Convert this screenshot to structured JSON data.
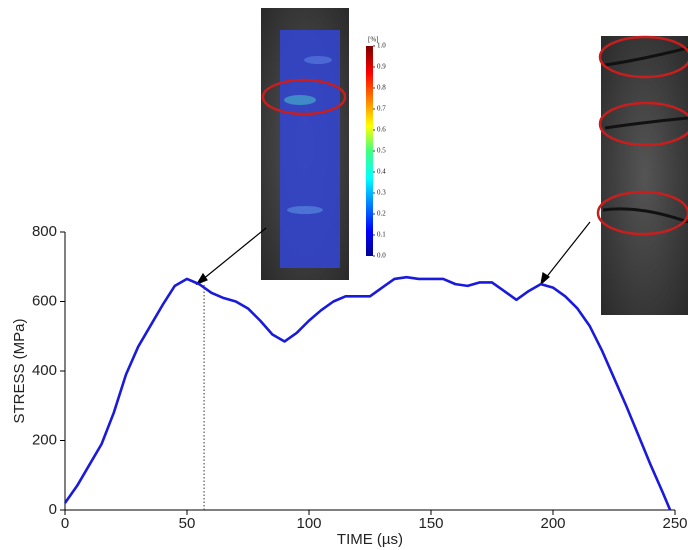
{
  "chart_data": {
    "type": "line",
    "x_label": "TIME (µs)",
    "y_label": "STRESS (MPa)",
    "x": [
      0,
      5,
      10,
      15,
      20,
      25,
      30,
      35,
      40,
      45,
      50,
      55,
      60,
      65,
      70,
      75,
      80,
      85,
      90,
      95,
      100,
      105,
      110,
      115,
      120,
      125,
      130,
      135,
      140,
      145,
      150,
      155,
      160,
      165,
      170,
      175,
      180,
      185,
      190,
      195,
      200,
      205,
      210,
      215,
      220,
      225,
      230,
      235,
      240,
      245,
      248
    ],
    "series": [
      {
        "name": "stress",
        "color": "#1a1adc",
        "values": [
          20,
          70,
          130,
          190,
          280,
          390,
          470,
          530,
          590,
          645,
          665,
          650,
          625,
          610,
          600,
          580,
          545,
          505,
          485,
          510,
          545,
          575,
          600,
          615,
          615,
          615,
          640,
          665,
          670,
          665,
          665,
          665,
          650,
          645,
          655,
          655,
          630,
          605,
          630,
          650,
          640,
          615,
          580,
          530,
          460,
          380,
          300,
          215,
          130,
          50,
          0
        ]
      }
    ],
    "xlim": [
      0,
      250
    ],
    "xticks": [
      0,
      50,
      100,
      150,
      200,
      250
    ],
    "ylim": [
      0,
      800
    ],
    "yticks": [
      0,
      200,
      400,
      600,
      800
    ],
    "vline_x": 57,
    "colorbar": {
      "label": "[%]",
      "ticks": [
        {
          "value": 0,
          "label": "0.0"
        },
        0.1,
        0.2,
        0.3,
        0.4,
        0.5,
        0.6,
        0.7,
        0.8,
        0.9,
        {
          "value": 1,
          "label": "1.0"
        }
      ]
    }
  }
}
